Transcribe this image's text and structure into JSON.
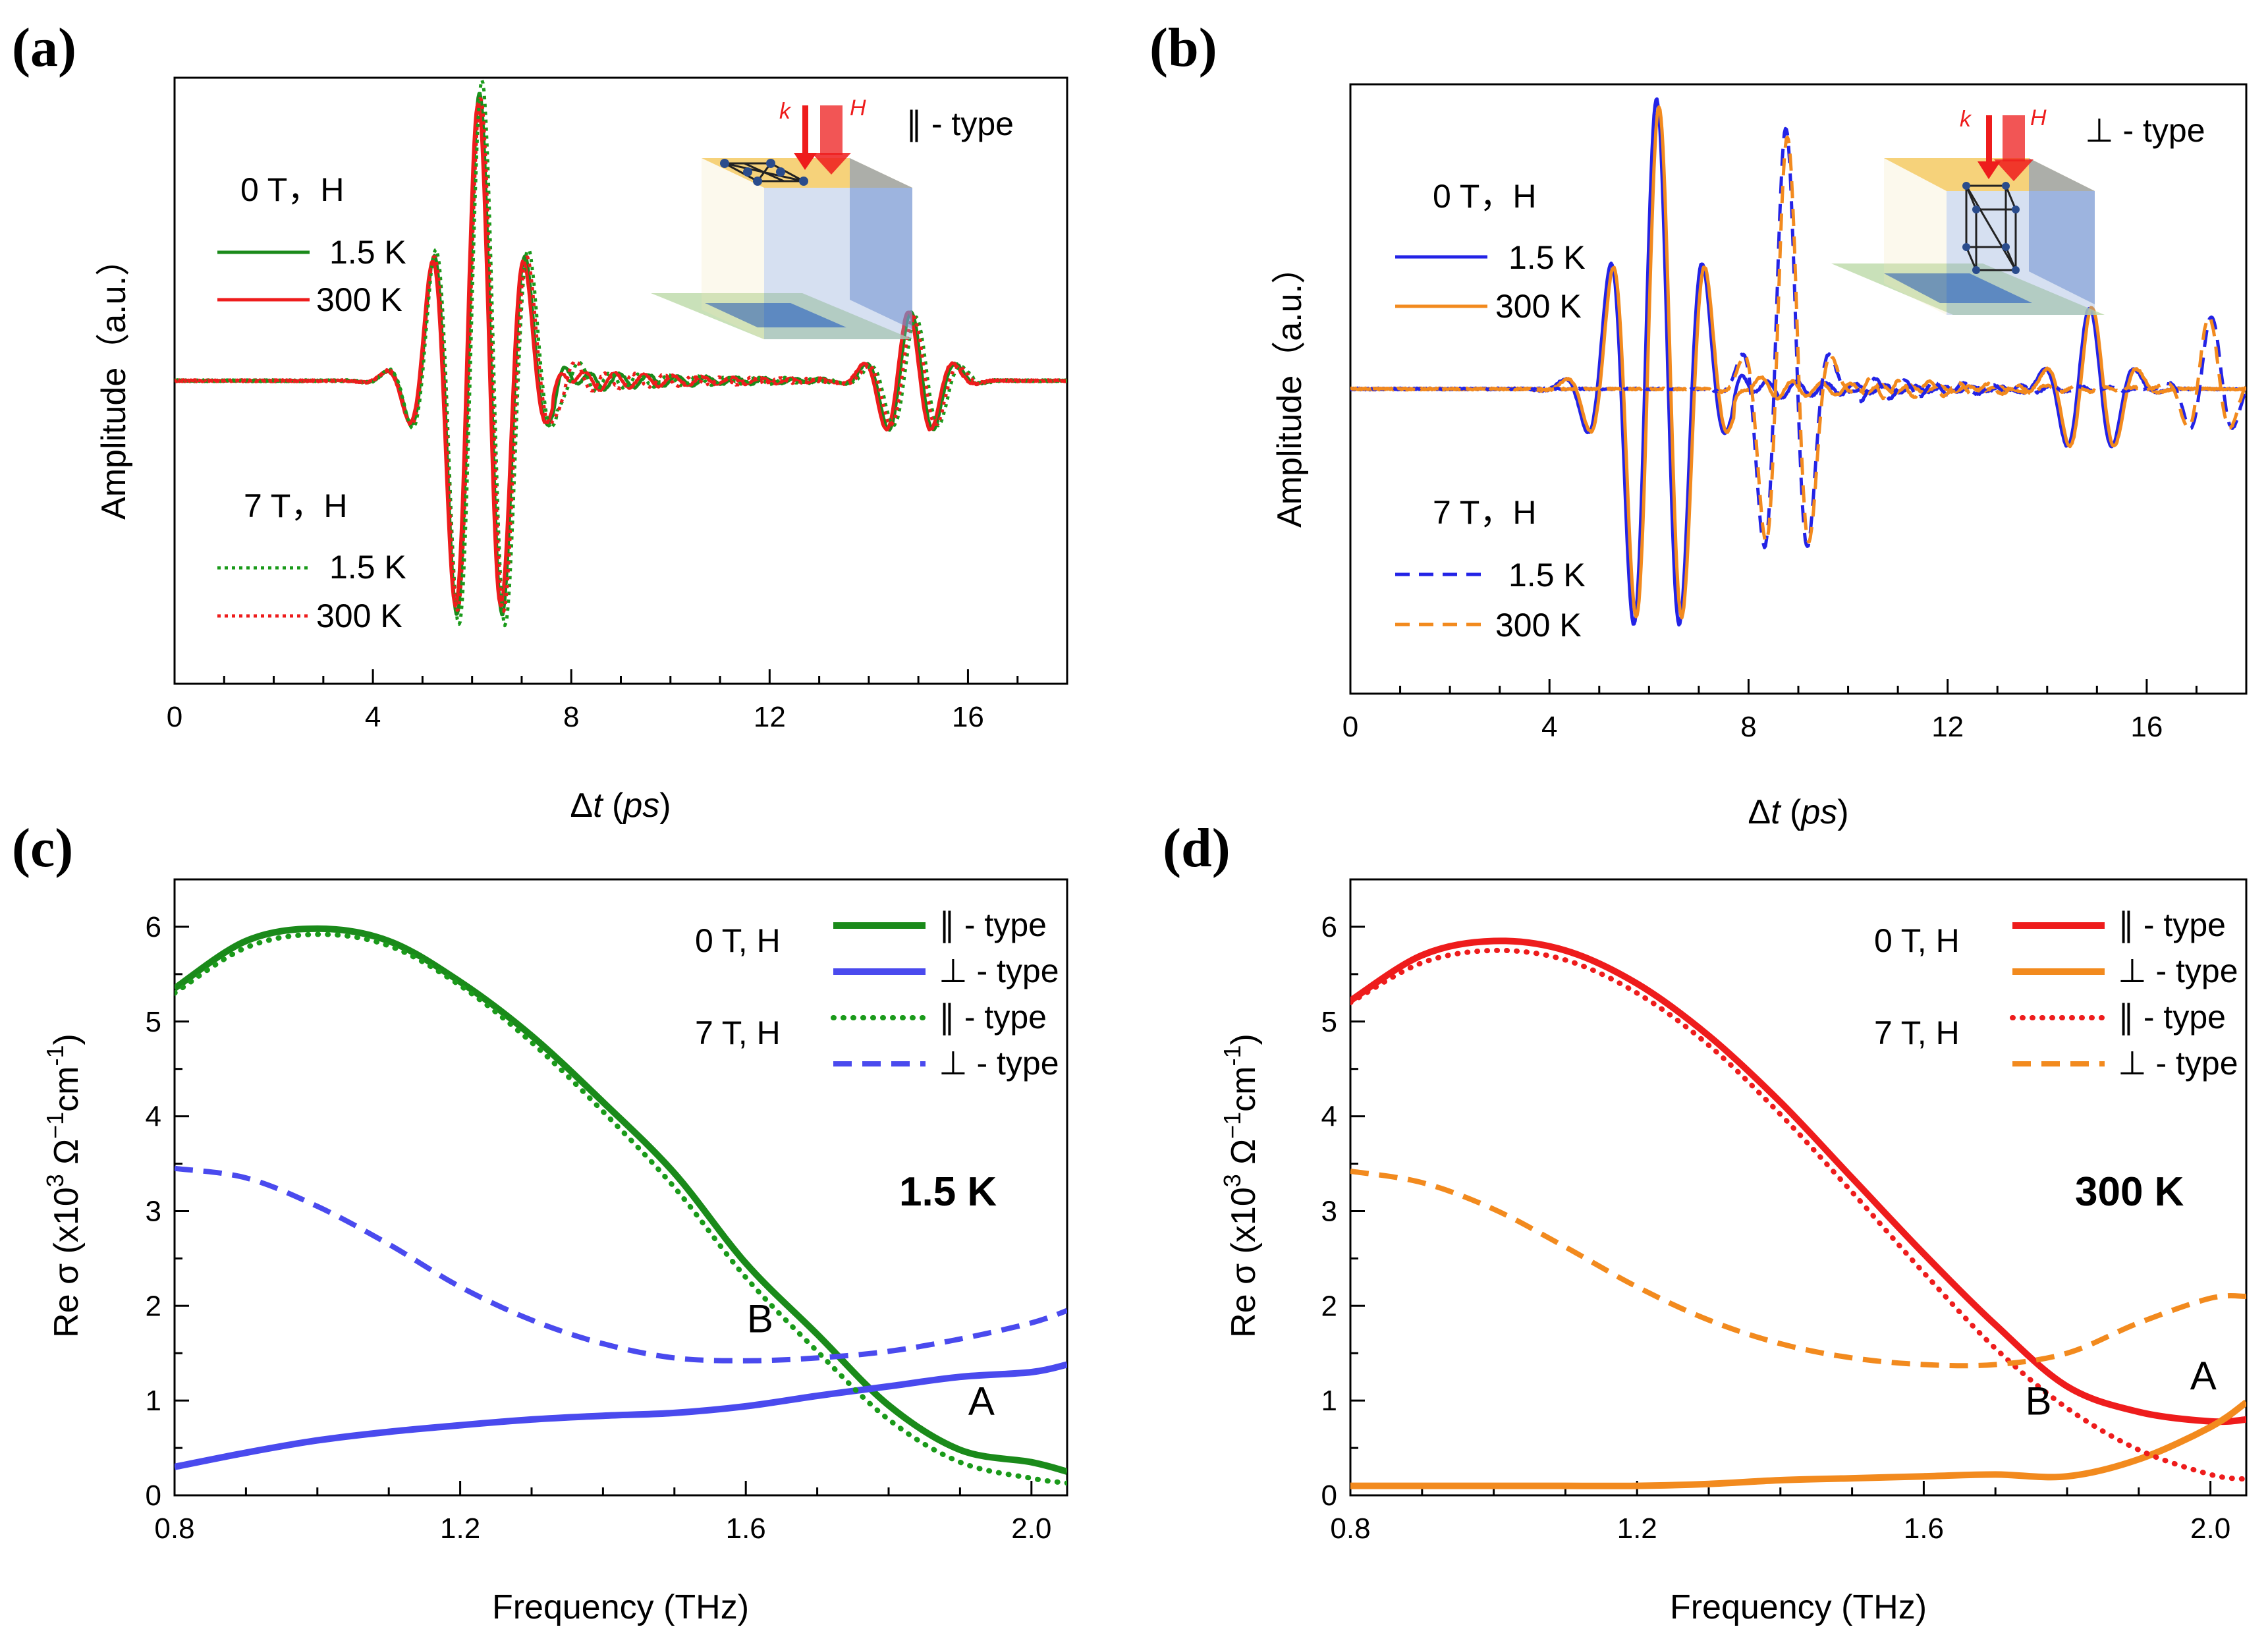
{
  "colors": {
    "green": "#1a8a1a",
    "red": "#ee1c1c",
    "blue": "#2323e6",
    "orange": "#f28a1e",
    "blue_light": "#4a4aee",
    "green_dotted": "#1a9a1a"
  },
  "chart_data": [
    {
      "id": "a",
      "panel_label": "(a)",
      "type": "line",
      "xlabel_prefix": "Δ",
      "xlabel_var": "t",
      "xlabel_open": " (",
      "xlabel_unit": "ps",
      "xlabel_close": ")",
      "ylabel": "Amplitude（a.u.）",
      "xlim": [
        0,
        18
      ],
      "ylim": [
        -1.05,
        1.05
      ],
      "xticks": [
        0,
        4,
        8,
        12,
        16
      ],
      "geometry_type": "∥ - type",
      "legend_groups": [
        {
          "header": "0 T，H",
          "entries": [
            {
              "label": "1.5 K",
              "series": 0
            },
            {
              "label": "300 K",
              "series": 1
            }
          ]
        },
        {
          "header": "7 T，H",
          "entries": [
            {
              "label": "1.5 K",
              "series": 2
            },
            {
              "label": "300 K",
              "series": 3
            }
          ]
        }
      ],
      "inset_labels": {
        "k": "k",
        "h": "H"
      },
      "series": [
        {
          "name": "0 T 1.5 K",
          "color": "green",
          "style": "solid",
          "pulses": [
            {
              "t0": 6.15,
              "amp": 1.0,
              "f": 1.05,
              "w": 0.72
            },
            {
              "t0": 14.85,
              "amp": 0.24,
              "f": 1.05,
              "w": 0.55
            }
          ]
        },
        {
          "name": "0 T 300 K",
          "color": "red",
          "style": "solid",
          "pulses": [
            {
              "t0": 6.12,
              "amp": 0.96,
              "f": 1.05,
              "w": 0.72
            },
            {
              "t0": 14.8,
              "amp": 0.24,
              "f": 1.05,
              "w": 0.55
            }
          ]
        },
        {
          "name": "7 T 1.5 K",
          "color": "green_dotted",
          "style": "dotted",
          "pulses": [
            {
              "t0": 6.2,
              "amp": 1.04,
              "f": 1.03,
              "w": 0.74
            },
            {
              "t0": 14.95,
              "amp": 0.22,
              "f": 1.03,
              "w": 0.55
            }
          ]
        },
        {
          "name": "7 T 300 K",
          "color": "red",
          "style": "dotted",
          "pulses": [
            {
              "t0": 6.17,
              "amp": 0.98,
              "f": 1.03,
              "w": 0.74
            },
            {
              "t0": 14.9,
              "amp": 0.22,
              "f": 1.03,
              "w": 0.55
            }
          ]
        }
      ]
    },
    {
      "id": "b",
      "panel_label": "(b)",
      "type": "line",
      "xlabel_prefix": "Δ",
      "xlabel_var": "t",
      "xlabel_open": " (",
      "xlabel_unit": "ps",
      "xlabel_close": ")",
      "ylabel": "Amplitude（a.u.）",
      "xlim": [
        0,
        18
      ],
      "ylim": [
        -1.05,
        1.05
      ],
      "xticks": [
        0,
        4,
        8,
        12,
        16
      ],
      "geometry_type": "⊥ - type",
      "legend_groups": [
        {
          "header": "0 T，H",
          "entries": [
            {
              "label": "1.5 K",
              "series": 0
            },
            {
              "label": "300 K",
              "series": 1
            }
          ]
        },
        {
          "header": "7 T，H",
          "entries": [
            {
              "label": "1.5 K",
              "series": 2
            },
            {
              "label": "300 K",
              "series": 3
            }
          ]
        }
      ],
      "inset_labels": {
        "k": "k",
        "h": "H"
      },
      "series": [
        {
          "name": "0 T 1.5 K",
          "color": "blue",
          "style": "solid",
          "pulses": [
            {
              "t0": 6.15,
              "amp": 1.0,
              "f": 1.05,
              "w": 0.72
            },
            {
              "t0": 14.85,
              "amp": 0.28,
              "f": 1.05,
              "w": 0.55
            }
          ]
        },
        {
          "name": "0 T 300 K",
          "color": "orange",
          "style": "solid",
          "pulses": [
            {
              "t0": 6.2,
              "amp": 0.97,
              "f": 1.05,
              "w": 0.72
            },
            {
              "t0": 14.9,
              "amp": 0.28,
              "f": 1.05,
              "w": 0.55
            }
          ]
        },
        {
          "name": "7 T 1.5 K",
          "color": "blue",
          "style": "dashed",
          "pulses": [
            {
              "t0": 8.75,
              "amp": 0.9,
              "f": 1.05,
              "w": 0.45
            },
            {
              "t0": 17.3,
              "amp": 0.25,
              "f": 1.05,
              "w": 0.4
            }
          ]
        },
        {
          "name": "7 T 300 K",
          "color": "orange",
          "style": "dashed",
          "pulses": [
            {
              "t0": 8.78,
              "amp": 0.87,
              "f": 1.05,
              "w": 0.45
            },
            {
              "t0": 17.25,
              "amp": 0.25,
              "f": 1.05,
              "w": 0.4
            }
          ]
        }
      ]
    },
    {
      "id": "c",
      "panel_label": "(c)",
      "type": "line",
      "xlabel": "Frequency (THz)",
      "ylabel_base": "Re σ (x10",
      "ylabel_exp1": "3",
      "ylabel_mid": " Ω",
      "ylabel_exp2": "−1",
      "ylabel_cm": "cm",
      "ylabel_exp3": "-1",
      "ylabel_end": ")",
      "xlim": [
        0.8,
        2.05
      ],
      "ylim": [
        0,
        6.5
      ],
      "xticks": [
        0.8,
        1.2,
        1.6,
        2.0
      ],
      "xticklabels": [
        "0.8",
        "1.2",
        "1.6",
        "2.0"
      ],
      "yticks": [
        0,
        1,
        2,
        3,
        4,
        5,
        6
      ],
      "temperature": "1.5 K",
      "annotations": [
        {
          "text": "B",
          "x": 1.62,
          "y": 1.72
        },
        {
          "text": "A",
          "x": 1.93,
          "y": 0.85
        }
      ],
      "legend_rows": [
        {
          "group": "0 T, H",
          "label": "∥ - type",
          "series": 0
        },
        {
          "group": "",
          "label": "⊥ - type",
          "series": 1
        },
        {
          "group": "7 T, H",
          "label": "∥ - type",
          "series": 2
        },
        {
          "group": "",
          "label": "⊥ - type",
          "series": 3
        }
      ],
      "series": [
        {
          "name": "0 T ∥ - type",
          "color": "green",
          "style": "solid",
          "x": [
            0.8,
            0.9,
            1.0,
            1.1,
            1.2,
            1.3,
            1.4,
            1.5,
            1.6,
            1.7,
            1.8,
            1.9,
            2.0,
            2.05
          ],
          "y": [
            5.35,
            5.85,
            5.98,
            5.85,
            5.42,
            4.85,
            4.15,
            3.4,
            2.45,
            1.7,
            0.95,
            0.48,
            0.35,
            0.25
          ]
        },
        {
          "name": "0 T ⊥ - type",
          "color": "blue_light",
          "style": "solid",
          "x": [
            0.8,
            0.9,
            1.0,
            1.1,
            1.2,
            1.3,
            1.4,
            1.5,
            1.6,
            1.7,
            1.8,
            1.9,
            2.0,
            2.05
          ],
          "y": [
            0.3,
            0.45,
            0.58,
            0.67,
            0.74,
            0.8,
            0.84,
            0.87,
            0.94,
            1.05,
            1.15,
            1.25,
            1.3,
            1.38
          ]
        },
        {
          "name": "7 T ∥ - type",
          "color": "green_dotted",
          "style": "dotted",
          "x": [
            0.8,
            0.9,
            1.0,
            1.1,
            1.2,
            1.3,
            1.4,
            1.5,
            1.6,
            1.7,
            1.8,
            1.9,
            2.0,
            2.05
          ],
          "y": [
            5.3,
            5.78,
            5.92,
            5.8,
            5.38,
            4.78,
            4.05,
            3.25,
            2.3,
            1.52,
            0.8,
            0.35,
            0.18,
            0.13
          ]
        },
        {
          "name": "7 T ⊥ - type",
          "color": "blue_light",
          "style": "dashed",
          "x": [
            0.8,
            0.9,
            1.0,
            1.1,
            1.2,
            1.3,
            1.4,
            1.5,
            1.6,
            1.7,
            1.8,
            1.9,
            2.0,
            2.05
          ],
          "y": [
            3.45,
            3.35,
            3.05,
            2.65,
            2.2,
            1.85,
            1.6,
            1.45,
            1.42,
            1.45,
            1.52,
            1.65,
            1.82,
            1.95
          ]
        }
      ]
    },
    {
      "id": "d",
      "panel_label": "(d)",
      "type": "line",
      "xlabel": "Frequency (THz)",
      "ylabel_base": "Re σ (x10",
      "ylabel_exp1": "3",
      "ylabel_mid": " Ω",
      "ylabel_exp2": "−1",
      "ylabel_cm": "cm",
      "ylabel_exp3": "-1",
      "ylabel_end": ")",
      "xlim": [
        0.8,
        2.05
      ],
      "ylim": [
        0,
        6.5
      ],
      "xticks": [
        0.8,
        1.2,
        1.6,
        2.0
      ],
      "xticklabels": [
        "0.8",
        "1.2",
        "1.6",
        "2.0"
      ],
      "yticks": [
        0,
        1,
        2,
        3,
        4,
        5,
        6
      ],
      "temperature": "300 K",
      "annotations": [
        {
          "text": "B",
          "x": 1.76,
          "y": 0.85
        },
        {
          "text": "A",
          "x": 1.99,
          "y": 1.12
        }
      ],
      "legend_rows": [
        {
          "group": "0 T, H",
          "label": "∥ - type",
          "series": 0
        },
        {
          "group": "",
          "label": "⊥ - type",
          "series": 1
        },
        {
          "group": "7 T, H",
          "label": "∥ - type",
          "series": 2
        },
        {
          "group": "",
          "label": "⊥ - type",
          "series": 3
        }
      ],
      "series": [
        {
          "name": "0 T ∥ - type",
          "color": "red",
          "style": "solid",
          "x": [
            0.8,
            0.9,
            1.0,
            1.1,
            1.2,
            1.3,
            1.4,
            1.5,
            1.6,
            1.7,
            1.8,
            1.9,
            2.0,
            2.05
          ],
          "y": [
            5.22,
            5.7,
            5.85,
            5.75,
            5.4,
            4.85,
            4.15,
            3.35,
            2.55,
            1.8,
            1.15,
            0.88,
            0.78,
            0.8
          ]
        },
        {
          "name": "0 T ⊥ - type",
          "color": "orange",
          "style": "solid",
          "x": [
            0.8,
            0.9,
            1.0,
            1.1,
            1.2,
            1.3,
            1.4,
            1.5,
            1.6,
            1.7,
            1.8,
            1.9,
            2.0,
            2.05
          ],
          "y": [
            0.1,
            0.1,
            0.1,
            0.1,
            0.1,
            0.12,
            0.16,
            0.18,
            0.2,
            0.22,
            0.2,
            0.38,
            0.72,
            0.98
          ]
        },
        {
          "name": "7 T ∥ - type",
          "color": "red",
          "style": "dotted",
          "x": [
            0.8,
            0.9,
            1.0,
            1.1,
            1.2,
            1.3,
            1.4,
            1.5,
            1.6,
            1.7,
            1.8,
            1.9,
            2.0,
            2.05
          ],
          "y": [
            5.2,
            5.62,
            5.75,
            5.65,
            5.3,
            4.75,
            4.02,
            3.2,
            2.35,
            1.55,
            0.92,
            0.48,
            0.22,
            0.17
          ]
        },
        {
          "name": "7 T ⊥ - type",
          "color": "orange",
          "style": "dashed",
          "x": [
            0.8,
            0.9,
            1.0,
            1.1,
            1.2,
            1.3,
            1.4,
            1.5,
            1.6,
            1.7,
            1.8,
            1.9,
            2.0,
            2.05
          ],
          "y": [
            3.42,
            3.3,
            3.02,
            2.62,
            2.2,
            1.85,
            1.6,
            1.45,
            1.38,
            1.38,
            1.5,
            1.82,
            2.08,
            2.1
          ]
        }
      ]
    }
  ]
}
